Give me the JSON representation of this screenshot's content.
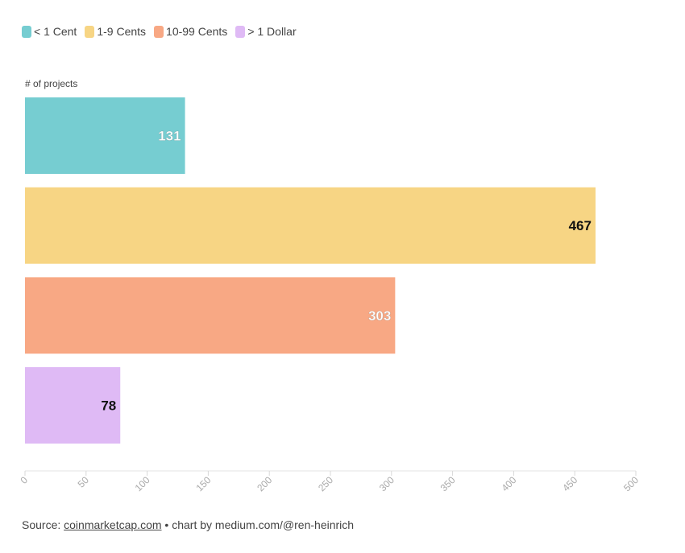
{
  "legend": [
    {
      "label": "< 1 Cent",
      "color": "#76cdd1"
    },
    {
      "label": "1-9 Cents",
      "color": "#f7d584"
    },
    {
      "label": "10-99 Cents",
      "color": "#f8a884"
    },
    {
      "label": "> 1 Dollar",
      "color": "#dfbaf5"
    }
  ],
  "source": {
    "prefix": "Source: ",
    "link_text": "coinmarketcap.com",
    "suffix": " • chart by medium.com/@ren-heinrich"
  },
  "chart_data": {
    "type": "bar",
    "orientation": "horizontal",
    "ylabel": "# of projects",
    "categories": [
      "< 1 Cent",
      "1-9 Cents",
      "10-99 Cents",
      "> 1 Dollar"
    ],
    "values": [
      131,
      467,
      303,
      78
    ],
    "colors": [
      "#76cdd1",
      "#f7d584",
      "#f8a884",
      "#dfbaf5"
    ],
    "label_colors": [
      "#ffffff",
      "#111111",
      "#ffffff",
      "#111111"
    ],
    "xlim": [
      0,
      500
    ],
    "xticks": [
      0,
      50,
      100,
      150,
      200,
      250,
      300,
      350,
      400,
      450,
      500
    ],
    "grid": false,
    "legend_position": "top-left"
  }
}
